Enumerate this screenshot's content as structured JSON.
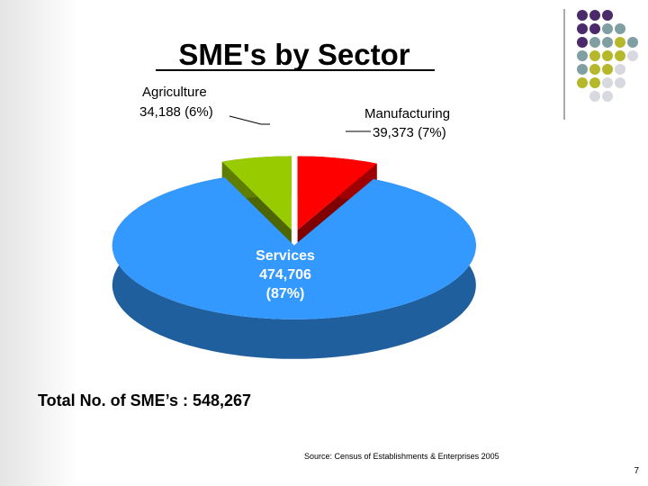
{
  "chart_data": {
    "type": "pie",
    "title": "SME's by Sector",
    "categories": [
      "Agriculture",
      "Manufacturing",
      "Services"
    ],
    "values": [
      34188,
      39373,
      474706
    ],
    "value_labels": [
      "34,188",
      "39,373",
      "474,706"
    ],
    "percents": [
      6,
      7,
      87
    ],
    "percent_labels": [
      "(6%)",
      "(7%)",
      "(87%)"
    ],
    "colors": [
      "#99cc00",
      "#ff0000",
      "#3399ff"
    ],
    "total_label": "Total No. of SME’s : 548,267",
    "source": "Source: Census of Establishments & Enterprises 2005",
    "page_number": "7"
  }
}
